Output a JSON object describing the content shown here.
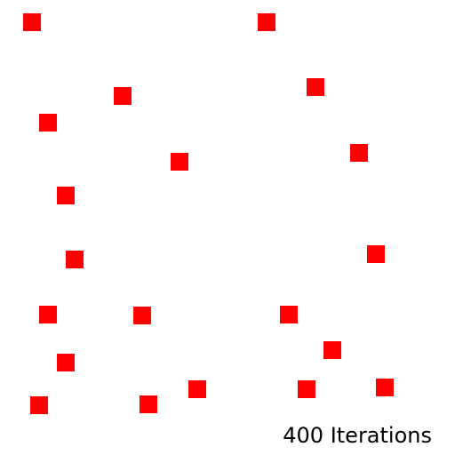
{
  "marker_color": "#ff0000",
  "marker_count": 20,
  "iterations_label": "400 Iterations"
}
